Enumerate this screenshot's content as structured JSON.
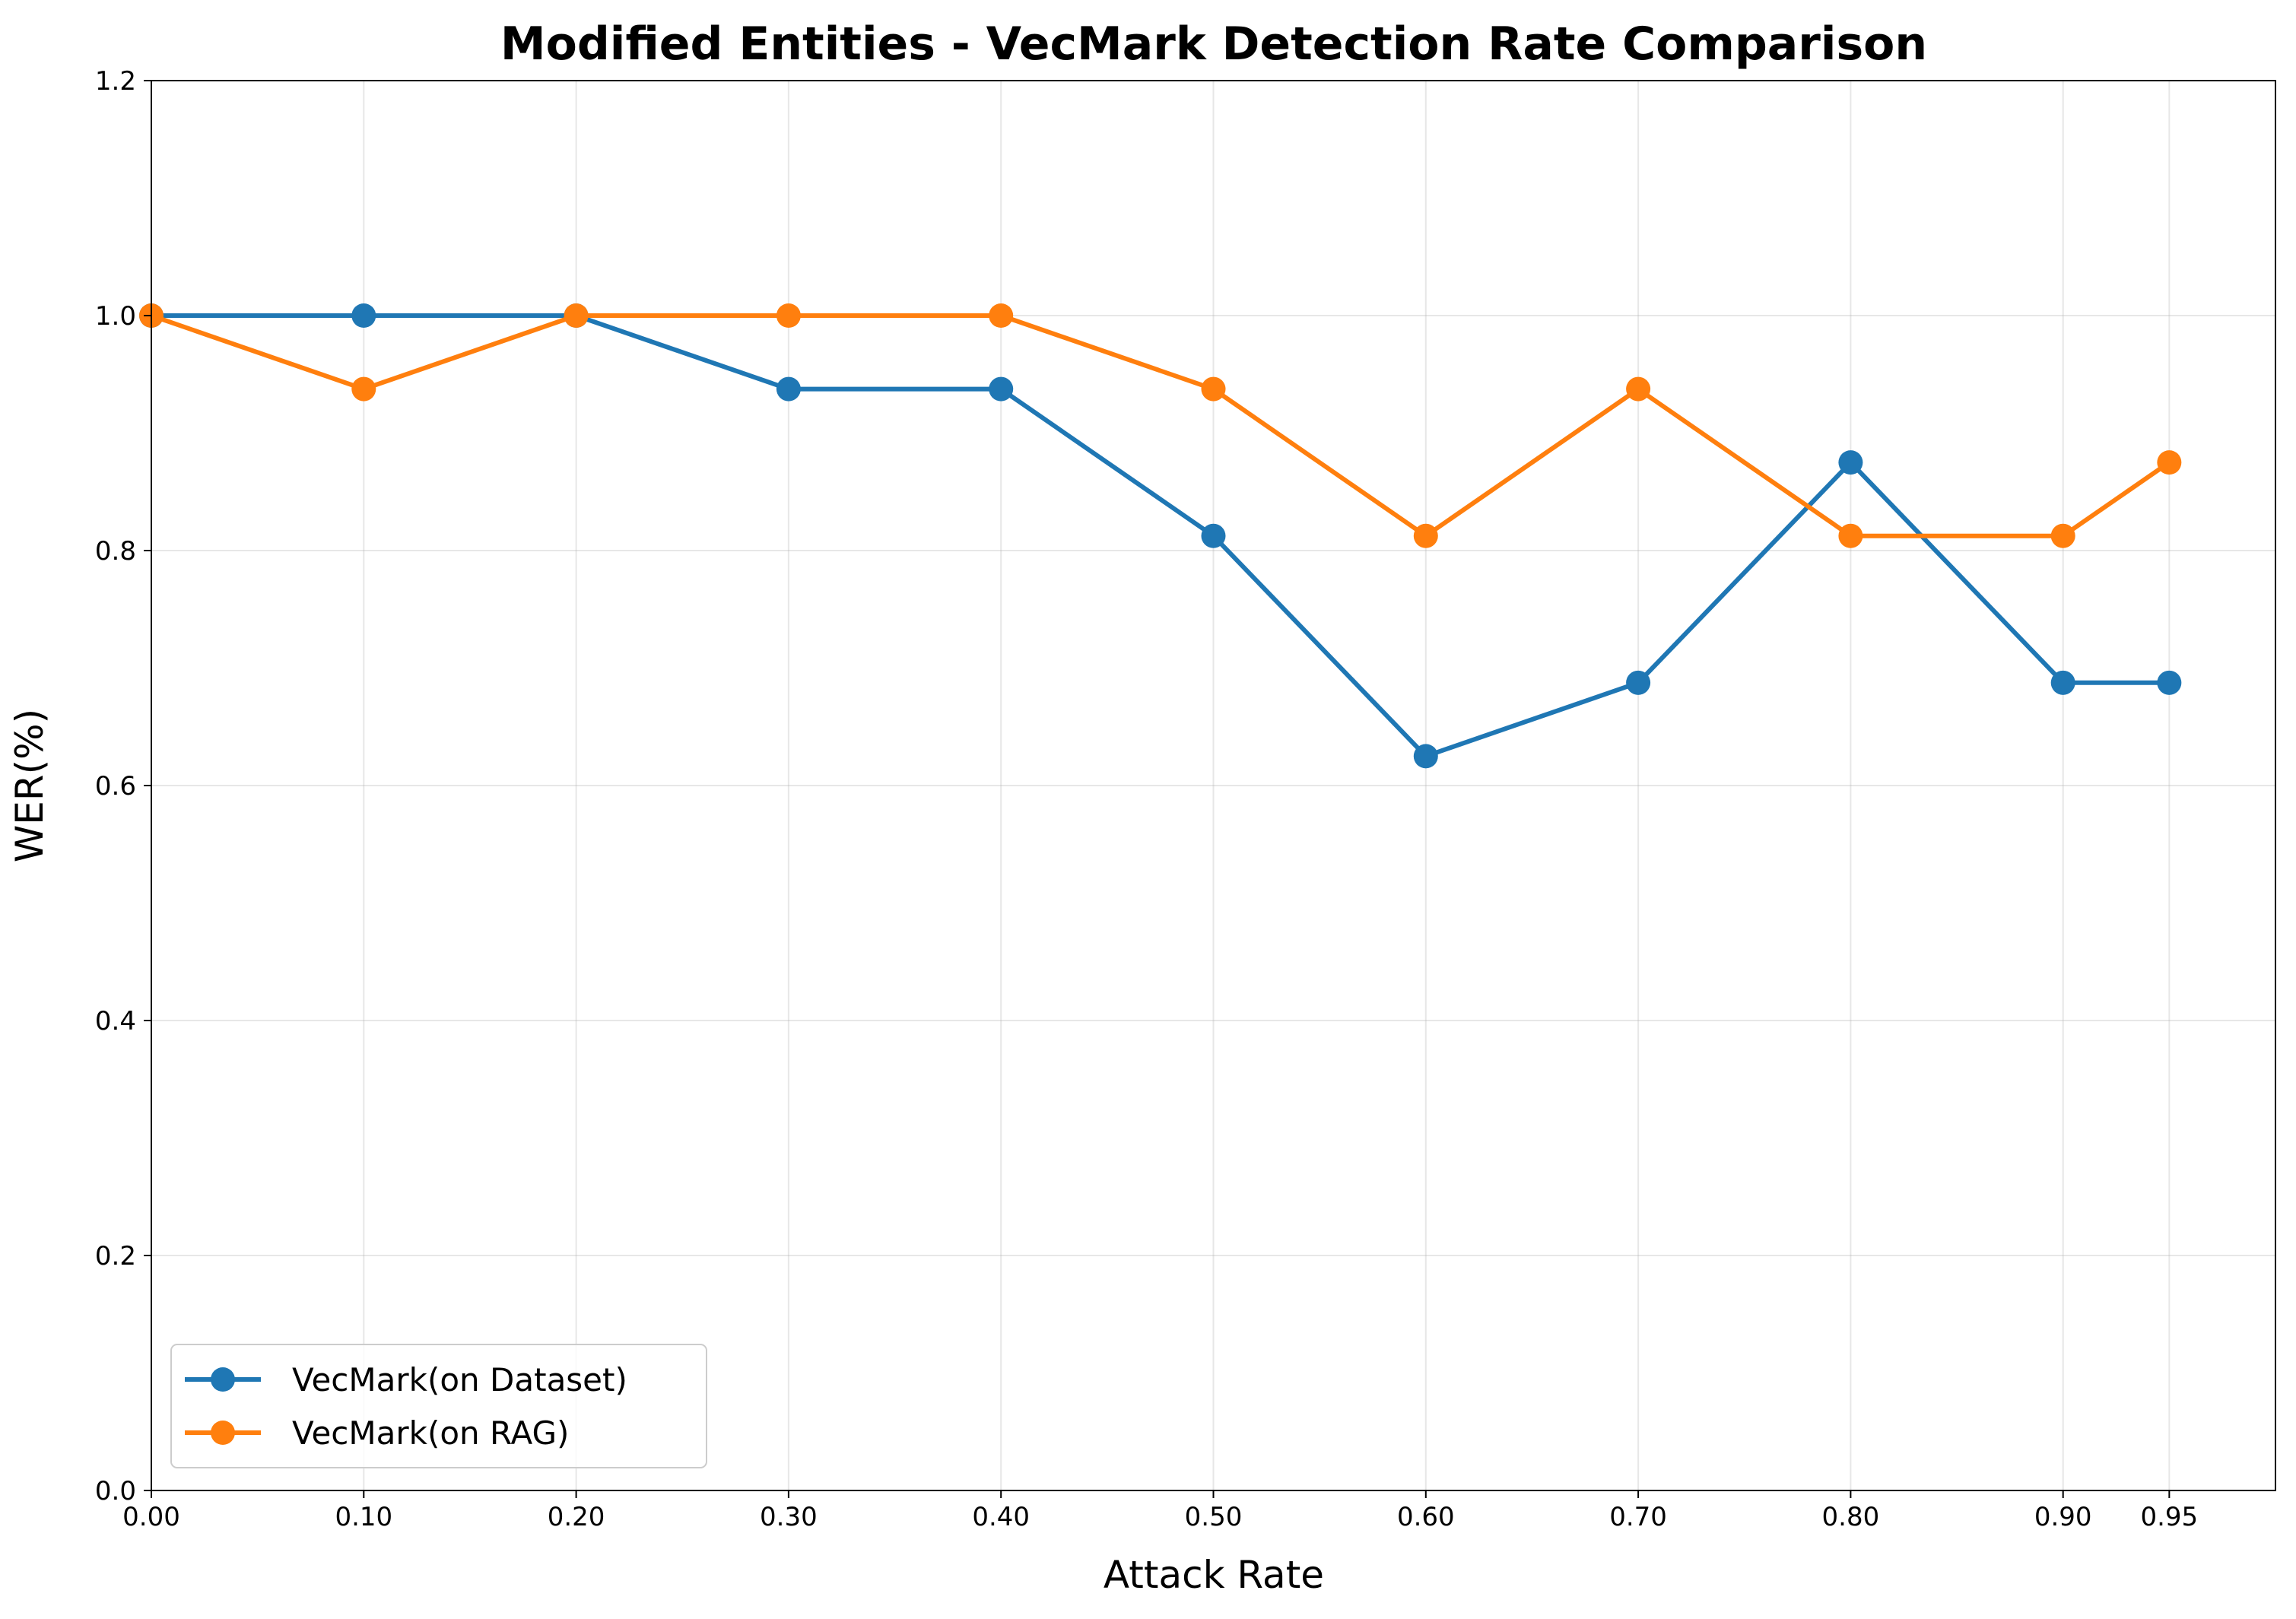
{
  "chart_data": {
    "type": "line",
    "title": "Modified Entities - VecMark Detection Rate Comparison",
    "xlabel": "Attack Rate",
    "ylabel": "WER(%)",
    "x": [
      0.0,
      0.1,
      0.2,
      0.3,
      0.4,
      0.5,
      0.6,
      0.7,
      0.8,
      0.9,
      0.95
    ],
    "xtick_labels": [
      "0.00",
      "0.10",
      "0.20",
      "0.30",
      "0.40",
      "0.50",
      "0.60",
      "0.70",
      "0.80",
      "0.90",
      "0.95"
    ],
    "xlim": [
      0.0,
      1.0
    ],
    "ylim": [
      0.0,
      1.2
    ],
    "yticks": [
      0.0,
      0.2,
      0.4,
      0.6,
      0.8,
      1.0,
      1.2
    ],
    "ytick_labels": [
      "0.0",
      "0.2",
      "0.4",
      "0.6",
      "0.8",
      "1.0",
      "1.2"
    ],
    "grid": true,
    "legend_position": "lower-left",
    "series": [
      {
        "name": "VecMark(on Dataset)",
        "color": "#1f77b4",
        "values": [
          1.0,
          1.0,
          1.0,
          0.9375,
          0.9375,
          0.8125,
          0.625,
          0.6875,
          0.875,
          0.6875,
          0.6875
        ]
      },
      {
        "name": "VecMark(on RAG)",
        "color": "#ff7f0e",
        "values": [
          1.0,
          0.9375,
          1.0,
          1.0,
          1.0,
          0.9375,
          0.8125,
          0.9375,
          0.8125,
          0.8125,
          0.875
        ]
      }
    ]
  }
}
